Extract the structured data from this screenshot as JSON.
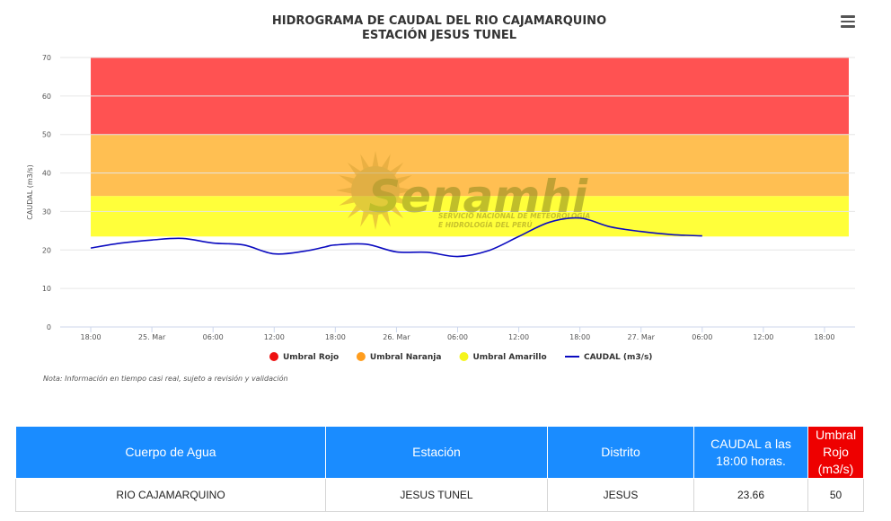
{
  "chart_data": {
    "type": "line",
    "title": "HIDROGRAMA DE CAUDAL DEL RIO CAJAMARQUINO",
    "subtitle": "ESTACIÓN JESUS TUNEL",
    "ylabel": "CAUDAL (m3/s)",
    "ylim": [
      0,
      70
    ],
    "yticks": [
      "0",
      "10",
      "20",
      "30",
      "40",
      "50",
      "60",
      "70"
    ],
    "xtick_labels": [
      "18:00",
      "25. Mar",
      "06:00",
      "12:00",
      "18:00",
      "26. Mar",
      "06:00",
      "12:00",
      "18:00",
      "27. Mar",
      "06:00",
      "12:00",
      "18:00"
    ],
    "bands": [
      {
        "name": "Umbral Rojo",
        "from": 50,
        "to": 70,
        "color": "#ff5252",
        "legend_color": "#ee1111"
      },
      {
        "name": "Umbral Naranja",
        "from": 34,
        "to": 50,
        "color": "#ffbf52",
        "legend_color": "#ff9d1e"
      },
      {
        "name": "Umbral Amarillo",
        "from": 23.5,
        "to": 34,
        "color": "#ffff3a",
        "legend_color": "#f5f51c"
      }
    ],
    "series": [
      {
        "name": "CAUDAL (m3/s)",
        "color": "#0b0bc0",
        "x": [
          0,
          3,
          6,
          9,
          12,
          15,
          18,
          21,
          23,
          24,
          27,
          30,
          33,
          36,
          39,
          42,
          45,
          48,
          51,
          54,
          57,
          60,
          63,
          66,
          69,
          72
        ],
        "values": [
          20.5,
          21.8,
          22.6,
          23.0,
          21.8,
          21.3,
          19.0,
          19.7,
          20.8,
          21.3,
          21.5,
          19.5,
          19.4,
          18.3,
          19.8,
          23.5,
          27.2,
          28.3,
          26.0,
          24.8,
          24.0,
          23.66,
          null,
          null,
          null,
          null
        ]
      }
    ],
    "grid": true,
    "legend": "bottom",
    "watermark": "Senamhi",
    "watermark_sub": [
      "SERVICIO NACIONAL DE METEOROLOGÍA",
      "E HIDROLOGÍA DEL PERÚ"
    ]
  },
  "note": "Nota: Información en tiempo casi real, sujeto a revisión y validación",
  "menu_icon": "hamburger-menu-icon",
  "table": {
    "headers": [
      {
        "label": "Cuerpo de Agua",
        "color": "#1a8cff"
      },
      {
        "label": "Estación",
        "color": "#1a8cff"
      },
      {
        "label": "Distrito",
        "color": "#1a8cff"
      },
      {
        "label": "CAUDAL a las 18:00 horas.",
        "color": "#1a8cff"
      },
      {
        "label": "Umbral Rojo (m3/s)",
        "color": "#ee0000"
      }
    ],
    "row": [
      "RIO CAJAMARQUINO",
      "JESUS TUNEL",
      "JESUS",
      "23.66",
      "50"
    ]
  }
}
